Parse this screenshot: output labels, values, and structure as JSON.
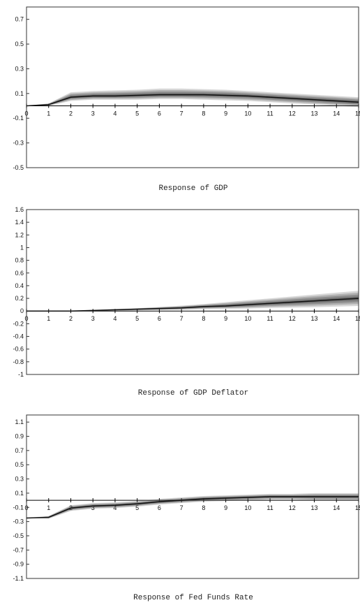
{
  "chart_data": [
    {
      "type": "line",
      "caption": "Response of GDP",
      "x": [
        0,
        1,
        2,
        3,
        4,
        5,
        6,
        7,
        8,
        9,
        10,
        11,
        12,
        13,
        14,
        15
      ],
      "xtick_labels": [
        "0",
        "1",
        "2",
        "3",
        "4",
        "5",
        "6",
        "7",
        "8",
        "9",
        "10",
        "11",
        "12",
        "13",
        "14",
        "15"
      ],
      "ylim": [
        -0.5,
        0.8
      ],
      "ytick_labels": [
        "0.7",
        "0.5",
        "0.3",
        "0.1",
        "-0.1",
        "-0.3",
        "-0.5"
      ],
      "ytick_values": [
        0.7,
        0.5,
        0.3,
        0.1,
        -0.1,
        -0.3,
        -0.5
      ],
      "series": [
        {
          "values": [
            0,
            0.01,
            0.07,
            0.08,
            0.08,
            0.085,
            0.09,
            0.09,
            0.09,
            0.085,
            0.08,
            0.07,
            0.06,
            0.05,
            0.04,
            0.03
          ]
        }
      ],
      "band_upper": [
        0,
        0.02,
        0.11,
        0.12,
        0.125,
        0.13,
        0.14,
        0.14,
        0.135,
        0.13,
        0.12,
        0.11,
        0.1,
        0.09,
        0.08,
        0.07
      ],
      "band_lower": [
        0,
        0.0,
        0.04,
        0.05,
        0.05,
        0.05,
        0.055,
        0.055,
        0.05,
        0.045,
        0.04,
        0.03,
        0.02,
        0.01,
        0.0,
        -0.01
      ]
    },
    {
      "type": "line",
      "caption": "Response of GDP Deflator",
      "x": [
        0,
        1,
        2,
        3,
        4,
        5,
        6,
        7,
        8,
        9,
        10,
        11,
        12,
        13,
        14,
        15
      ],
      "xtick_labels": [
        "0",
        "1",
        "2",
        "3",
        "4",
        "5",
        "6",
        "7",
        "8",
        "9",
        "10",
        "11",
        "12",
        "13",
        "14",
        "15"
      ],
      "ylim": [
        -1,
        1.6
      ],
      "ytick_labels": [
        "1.6",
        "1.4",
        "1.2",
        "1",
        "0.8",
        "0.6",
        "0.4",
        "0.2",
        "0",
        "-0.2",
        "-0.4",
        "-0.6",
        "-0.8",
        "-1"
      ],
      "ytick_values": [
        1.6,
        1.4,
        1.2,
        1,
        0.8,
        0.6,
        0.4,
        0.2,
        0,
        -0.2,
        -0.4,
        -0.6,
        -0.8,
        -1
      ],
      "series": [
        {
          "values": [
            0,
            0,
            0,
            0.01,
            0.02,
            0.03,
            0.04,
            0.05,
            0.07,
            0.08,
            0.1,
            0.12,
            0.14,
            0.16,
            0.18,
            0.2
          ]
        }
      ],
      "band_upper": [
        0,
        0,
        0.005,
        0.015,
        0.03,
        0.045,
        0.065,
        0.085,
        0.11,
        0.14,
        0.17,
        0.2,
        0.23,
        0.26,
        0.29,
        0.32
      ],
      "band_lower": [
        0,
        0,
        -0.005,
        0.0,
        0.005,
        0.01,
        0.015,
        0.02,
        0.03,
        0.035,
        0.04,
        0.05,
        0.055,
        0.06,
        0.07,
        0.08
      ]
    },
    {
      "type": "line",
      "caption": "Response of Fed Funds Rate",
      "x": [
        0,
        1,
        2,
        3,
        4,
        5,
        6,
        7,
        8,
        9,
        10,
        11,
        12,
        13,
        14,
        15
      ],
      "xtick_labels": [
        "0",
        "1",
        "2",
        "3",
        "4",
        "5",
        "6",
        "7",
        "8",
        "9",
        "10",
        "11",
        "12",
        "13",
        "14",
        "15"
      ],
      "ylim": [
        -1.1,
        1.2
      ],
      "ytick_labels": [
        "1.1",
        "0.9",
        "0.7",
        "0.5",
        "0.3",
        "0.1",
        "-0.1",
        "-0.3",
        "-0.5",
        "-0.7",
        "-0.9",
        "-1.1"
      ],
      "ytick_values": [
        1.1,
        0.9,
        0.7,
        0.5,
        0.3,
        0.1,
        -0.1,
        -0.3,
        -0.5,
        -0.7,
        -0.9,
        -1.1
      ],
      "series": [
        {
          "values": [
            -0.25,
            -0.24,
            -0.11,
            -0.08,
            -0.07,
            -0.05,
            -0.02,
            0.0,
            0.02,
            0.03,
            0.04,
            0.05,
            0.05,
            0.05,
            0.05,
            0.05
          ]
        }
      ],
      "band_upper": [
        -0.25,
        -0.22,
        -0.07,
        -0.04,
        -0.03,
        -0.01,
        0.02,
        0.04,
        0.06,
        0.07,
        0.08,
        0.09,
        0.09,
        0.1,
        0.1,
        0.1
      ],
      "band_lower": [
        -0.25,
        -0.26,
        -0.15,
        -0.12,
        -0.11,
        -0.09,
        -0.06,
        -0.04,
        -0.02,
        -0.01,
        0.0,
        0.01,
        0.01,
        0.0,
        0.0,
        0.0
      ]
    }
  ]
}
